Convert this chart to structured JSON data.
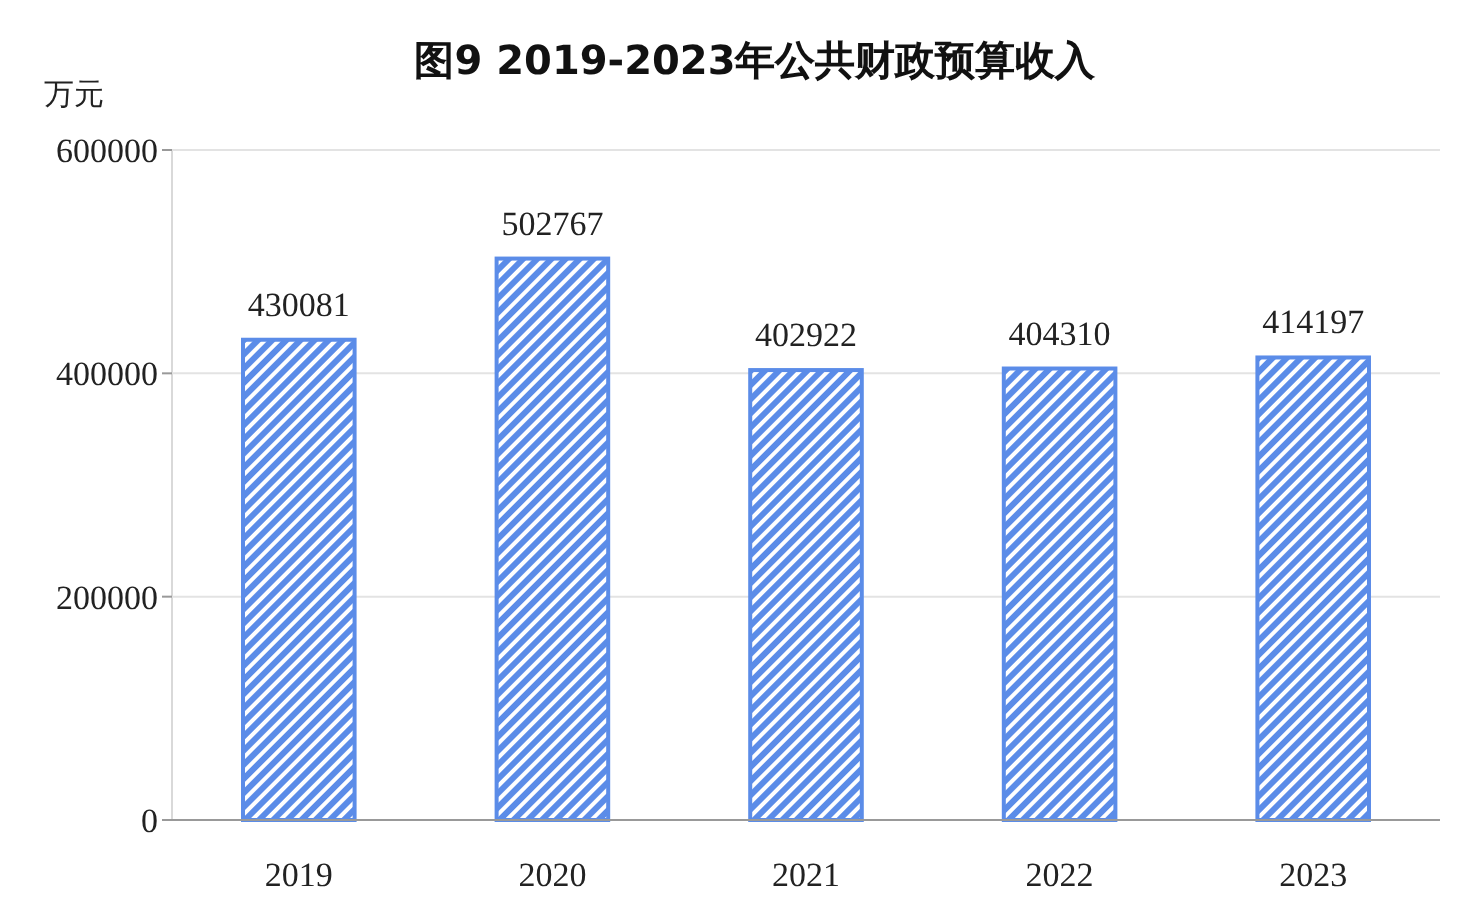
{
  "chart_data": {
    "type": "bar",
    "title": "图9  2019-2023年公共财政预算收入",
    "ylabel": "万元",
    "categories": [
      "2019",
      "2020",
      "2021",
      "2022",
      "2023"
    ],
    "values": [
      430081,
      502767,
      402922,
      404310,
      414197
    ],
    "color": "#5b8ce8",
    "ylim": [
      0,
      600000
    ],
    "yticks": [
      0,
      200000,
      400000,
      600000
    ],
    "grid": "y",
    "data_labels": true
  }
}
